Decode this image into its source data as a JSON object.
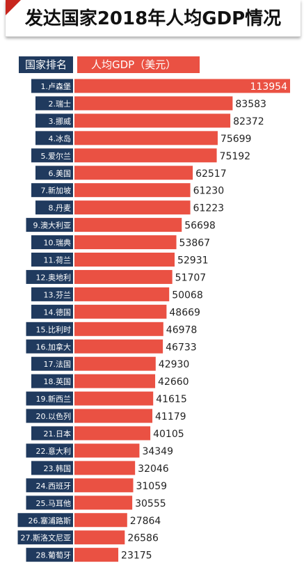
{
  "title": "发达国家2018年人均GDP情况",
  "headers": {
    "rank": "国家排名",
    "gdp": "人均GDP（美元）"
  },
  "colors": {
    "rank_bg": "#203a5e",
    "bar": "#ea5143",
    "accent": "#c8261e"
  },
  "chart_data": {
    "type": "bar",
    "orientation": "horizontal",
    "categories": [
      "1.卢森堡",
      "2.瑞士",
      "3.挪威",
      "4.冰岛",
      "5.爱尔兰",
      "6.美国",
      "7.新加坡",
      "8.丹麦",
      "9.澳大利亚",
      "10.瑞典",
      "11.荷兰",
      "12.奥地利",
      "13.芬兰",
      "14.德国",
      "15.比利时",
      "16.加拿大",
      "17.法国",
      "18.英国",
      "19.新西兰",
      "20.以色列",
      "21.日本",
      "22.意大利",
      "23.韩国",
      "24.西班牙",
      "25.马耳他",
      "26.塞浦路斯",
      "27.斯洛文尼亚",
      "28.葡萄牙"
    ],
    "values": [
      113954,
      83583,
      82372,
      75699,
      75192,
      62517,
      61230,
      61223,
      56698,
      53867,
      52931,
      51707,
      50068,
      48669,
      46978,
      46733,
      42930,
      42660,
      41615,
      41179,
      40105,
      34349,
      32046,
      31059,
      30555,
      27864,
      26586,
      23175
    ],
    "ylabel": "人均GDP（美元）",
    "xlabel": "国家排名"
  }
}
